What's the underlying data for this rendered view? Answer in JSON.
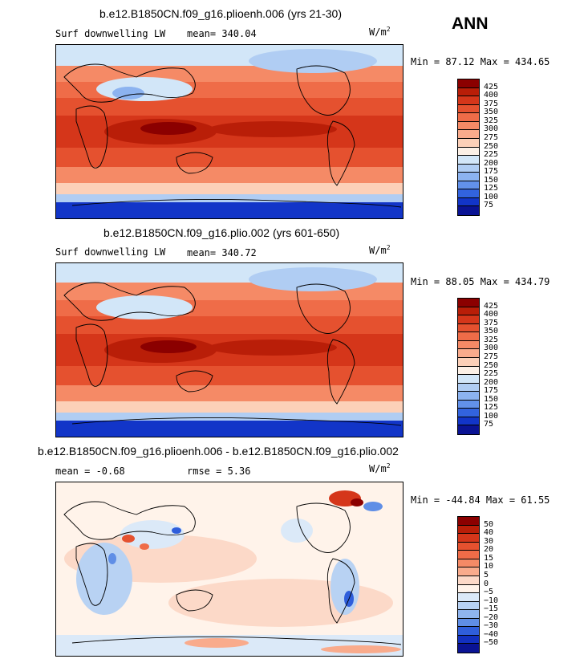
{
  "season": "ANN",
  "units_prefix": "W/m",
  "units_exp": "2",
  "panels": [
    {
      "title": "b.e12.B1850CN.f09_g16.plioenh.006 (yrs 21-30)",
      "variable": "Surf downwelling LW",
      "mean_label": "mean= 340.04",
      "rmse_label": "",
      "minmax": "Min =  87.12 Max = 434.65",
      "levels": [
        "425",
        "400",
        "375",
        "350",
        "325",
        "300",
        "275",
        "250",
        "225",
        "200",
        "175",
        "150",
        "125",
        "100",
        "75"
      ],
      "colors": [
        "#8b0000",
        "#b91e08",
        "#d5361a",
        "#e5512f",
        "#ef6c48",
        "#f58a66",
        "#f9ab8c",
        "#fcd0b8",
        "#fcf0e6",
        "#d2e6f8",
        "#b0cdf3",
        "#8cb3f0",
        "#6291ea",
        "#3263de",
        "#1235c8",
        "#0a1394"
      ],
      "type": "abs"
    },
    {
      "title": "b.e12.B1850CN.f09_g16.plio.002 (yrs 601-650)",
      "variable": "Surf downwelling LW",
      "mean_label": "mean= 340.72",
      "rmse_label": "",
      "minmax": "Min =  88.05 Max = 434.79",
      "levels": [
        "425",
        "400",
        "375",
        "350",
        "325",
        "300",
        "275",
        "250",
        "225",
        "200",
        "175",
        "150",
        "125",
        "100",
        "75"
      ],
      "colors": [
        "#8b0000",
        "#b91e08",
        "#d5361a",
        "#e5512f",
        "#ef6c48",
        "#f58a66",
        "#f9ab8c",
        "#fcd0b8",
        "#fcf0e6",
        "#d2e6f8",
        "#b0cdf3",
        "#8cb3f0",
        "#6291ea",
        "#3263de",
        "#1235c8",
        "#0a1394"
      ],
      "type": "abs"
    },
    {
      "title": "b.e12.B1850CN.f09_g16.plioenh.006 - b.e12.B1850CN.f09_g16.plio.002",
      "variable": "",
      "mean_label": "mean =  -0.68",
      "rmse_label": "rmse =   5.36",
      "minmax": "Min = -44.84 Max =  61.55",
      "levels": [
        "50",
        "40",
        "30",
        "20",
        "15",
        "10",
        "5",
        "0",
        "−5",
        "−10",
        "−15",
        "−20",
        "−30",
        "−40",
        "−50"
      ],
      "colors": [
        "#8b0000",
        "#b91e08",
        "#d5361a",
        "#e5512f",
        "#ef6c48",
        "#f58a66",
        "#f9ab8c",
        "#fcd9c8",
        "#fff3ea",
        "#dbe9f8",
        "#b8d2f3",
        "#8fb4ee",
        "#5f8ee6",
        "#2f5edb",
        "#1230c0",
        "#0a1394"
      ],
      "type": "diff"
    }
  ]
}
